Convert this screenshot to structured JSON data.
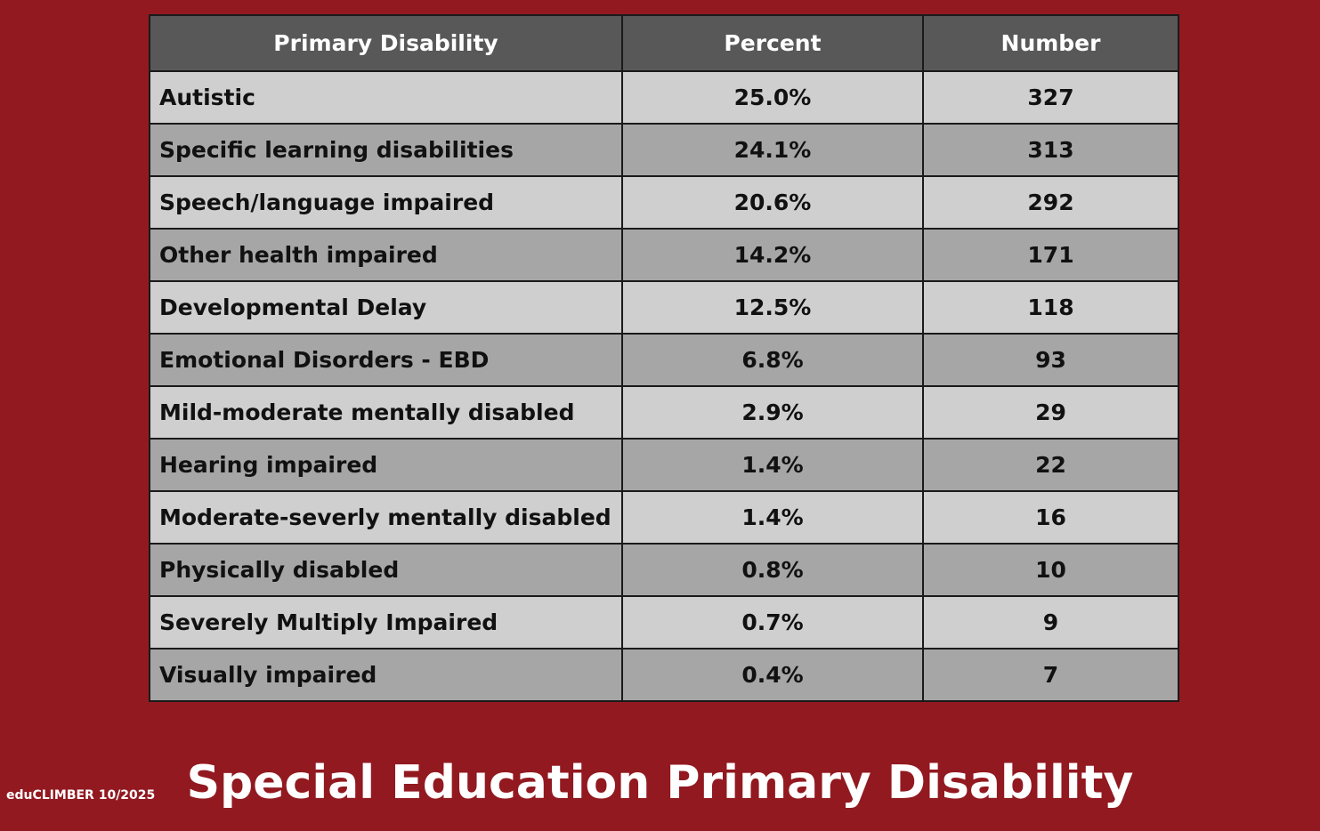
{
  "table": {
    "headers": [
      "Primary Disability",
      "Percent",
      "Number"
    ],
    "rows": [
      {
        "name": "Autistic",
        "percent": "25.0%",
        "number": "327"
      },
      {
        "name": "Specific learning disabilities",
        "percent": "24.1%",
        "number": "313"
      },
      {
        "name": "Speech/language impaired",
        "percent": "20.6%",
        "number": "292"
      },
      {
        "name": "Other health impaired",
        "percent": "14.2%",
        "number": "171"
      },
      {
        "name": "Developmental Delay",
        "percent": "12.5%",
        "number": "118"
      },
      {
        "name": "Emotional Disorders - EBD",
        "percent": "6.8%",
        "number": "93"
      },
      {
        "name": "Mild-moderate mentally disabled",
        "percent": "2.9%",
        "number": "29"
      },
      {
        "name": "Hearing impaired",
        "percent": "1.4%",
        "number": "22"
      },
      {
        "name": "Moderate-severly mentally disabled",
        "percent": "1.4%",
        "number": "16"
      },
      {
        "name": "Physically disabled",
        "percent": "0.8%",
        "number": "10"
      },
      {
        "name": "Severely Multiply Impaired",
        "percent": "0.7%",
        "number": "9"
      },
      {
        "name": "Visually impaired",
        "percent": "0.4%",
        "number": "7"
      }
    ]
  },
  "title": "Special Education Primary Disability",
  "footer": "eduCLIMBER 10/2025",
  "colors": {
    "background": "#921920",
    "header_bg": "#585858",
    "row_light": "#cfcfcf",
    "row_dark": "#a6a6a6"
  }
}
